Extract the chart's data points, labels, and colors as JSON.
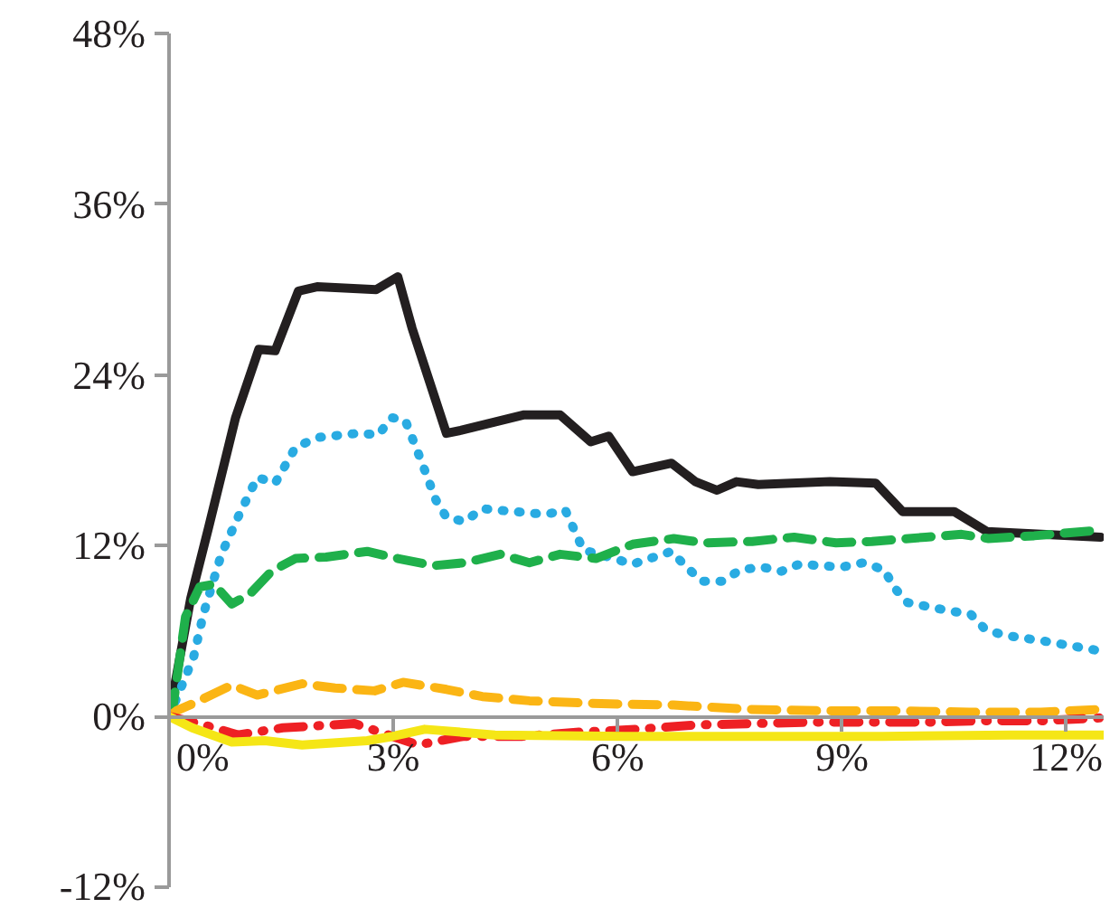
{
  "chart_data": {
    "type": "line",
    "xlim": [
      0,
      12.5
    ],
    "ylim": [
      -12,
      48
    ],
    "xticks": [
      {
        "value": 0,
        "label": "0%"
      },
      {
        "value": 3,
        "label": "3%"
      },
      {
        "value": 6,
        "label": "6%"
      },
      {
        "value": 9,
        "label": "9%"
      },
      {
        "value": 12,
        "label": "12%"
      }
    ],
    "yticks": [
      {
        "value": -12,
        "label": "-12%"
      },
      {
        "value": 0,
        "label": "0%"
      },
      {
        "value": 12,
        "label": "12%"
      },
      {
        "value": 24,
        "label": "24%"
      },
      {
        "value": 36,
        "label": "36%"
      },
      {
        "value": 48,
        "label": "48%"
      }
    ],
    "grid": false,
    "marker": "none",
    "series": [
      {
        "color": "#231f20",
        "line_style": "solid",
        "x": [
          0,
          0.29,
          0.53,
          0.89,
          1.2,
          1.42,
          1.73,
          1.98,
          2.77,
          3.06,
          3.25,
          3.71,
          3.9,
          4.75,
          5.23,
          5.64,
          5.88,
          6.2,
          6.72,
          7.04,
          7.33,
          7.59,
          7.88,
          8.84,
          9.45,
          9.81,
          10.5,
          10.94,
          12.46
        ],
        "values": [
          0,
          8.3,
          13.3,
          21,
          25.8,
          25.7,
          29.9,
          30.2,
          30.0,
          30.9,
          27.3,
          19.9,
          20.1,
          21.2,
          21.2,
          19.3,
          19.7,
          17.2,
          17.8,
          16.5,
          15.9,
          16.5,
          16.3,
          16.5,
          16.4,
          14.4,
          14.4,
          13.0,
          12.6
        ]
      },
      {
        "color": "#29abe2",
        "line_style": "dotted",
        "x": [
          0,
          0.12,
          0.33,
          0.46,
          0.7,
          0.94,
          1.18,
          1.42,
          1.69,
          1.98,
          2.53,
          2.8,
          2.98,
          3.16,
          3.37,
          3.57,
          3.71,
          3.95,
          4.19,
          5.04,
          5.3,
          5.42,
          5.54,
          5.95,
          6.2,
          6.72,
          6.92,
          7.13,
          7.4,
          7.64,
          7.93,
          8.19,
          8.43,
          9.0,
          9.28,
          9.57,
          9.69,
          9.88,
          10.46,
          10.72,
          10.92,
          11.18,
          11.7,
          12.46
        ],
        "values": [
          0,
          1.5,
          4.2,
          7.2,
          11.4,
          14.2,
          16.8,
          16.4,
          18.9,
          19.6,
          19.9,
          19.8,
          21.0,
          20.8,
          18.0,
          15.2,
          14.0,
          13.7,
          14.6,
          14.2,
          14.5,
          13.1,
          11.7,
          11.1,
          10.7,
          11.6,
          10.5,
          9.5,
          9.5,
          10.3,
          10.5,
          10.2,
          10.7,
          10.5,
          10.8,
          10.3,
          9.1,
          8.0,
          7.4,
          7.2,
          6.1,
          5.7,
          5.3,
          4.6
        ]
      },
      {
        "color": "#1fb04b",
        "line_style": "dashed",
        "x": [
          0,
          0.05,
          0.22,
          0.41,
          0.6,
          0.84,
          1.08,
          1.37,
          1.69,
          2.1,
          2.65,
          3.06,
          3.54,
          3.95,
          4.43,
          4.82,
          5.23,
          5.71,
          6.2,
          6.75,
          7.16,
          7.8,
          8.36,
          8.92,
          9.4,
          10.12,
          10.6,
          10.96,
          11.57,
          12.46
        ],
        "values": [
          0,
          0.6,
          7.0,
          9.1,
          9.3,
          7.9,
          8.6,
          10.2,
          11.1,
          11.2,
          11.6,
          11.1,
          10.6,
          10.8,
          11.4,
          10.8,
          11.4,
          11.1,
          12.1,
          12.5,
          12.2,
          12.3,
          12.6,
          12.2,
          12.3,
          12.6,
          12.8,
          12.5,
          12.7,
          13.1
        ]
      },
      {
        "color": "#fbb514",
        "line_style": "dashed",
        "x": [
          0,
          0.1,
          0.36,
          0.84,
          1.18,
          1.78,
          2.22,
          2.75,
          3.13,
          3.71,
          4.19,
          4.82,
          5.78,
          6.75,
          7.76,
          8.72,
          9.69,
          10.7,
          11.66,
          12.46
        ],
        "values": [
          0,
          0.4,
          1.0,
          2.2,
          1.5,
          2.3,
          2.0,
          1.8,
          2.4,
          1.9,
          1.4,
          1.1,
          0.9,
          0.8,
          0.5,
          0.4,
          0.4,
          0.3,
          0.3,
          0.5
        ]
      },
      {
        "color": "#ee2024",
        "line_style": "dashdot",
        "x": [
          0,
          0.41,
          0.92,
          1.52,
          2.48,
          2.99,
          3.33,
          3.93,
          4.72,
          5.49,
          6.27,
          7.04,
          7.81,
          8.58,
          9.35,
          10.14,
          10.92,
          11.69,
          12.46
        ],
        "values": [
          0,
          -0.5,
          -1.3,
          -0.8,
          -0.5,
          -1.4,
          -2.0,
          -1.4,
          -1.4,
          -1.1,
          -0.9,
          -0.6,
          -0.5,
          -0.4,
          -0.4,
          -0.4,
          -0.3,
          -0.3,
          -0.1
        ]
      },
      {
        "color": "#f5e616",
        "line_style": "solid",
        "x": [
          0,
          0.31,
          0.84,
          1.28,
          1.78,
          2.65,
          2.99,
          3.42,
          4.36,
          6.1,
          7.81,
          9.54,
          11.25,
          12.5
        ],
        "values": [
          0,
          -0.8,
          -1.8,
          -1.7,
          -2.0,
          -1.7,
          -1.4,
          -0.9,
          -1.3,
          -1.4,
          -1.4,
          -1.4,
          -1.3,
          -1.3
        ]
      }
    ]
  }
}
